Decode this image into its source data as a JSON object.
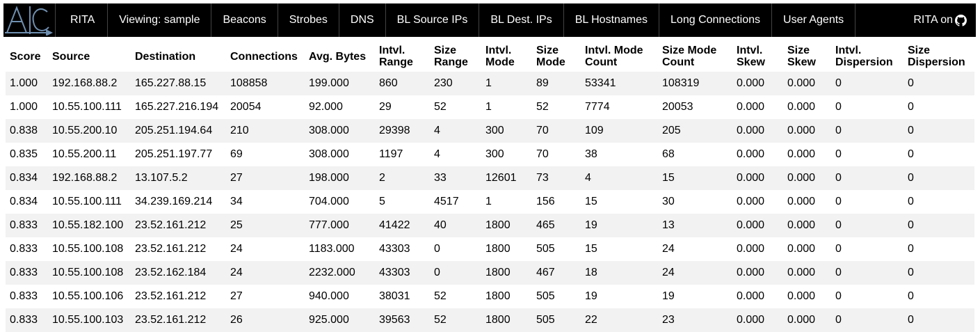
{
  "nav": {
    "logo_name": "rita-logo",
    "items": [
      {
        "label": "RITA"
      },
      {
        "label": "Viewing: sample"
      },
      {
        "label": "Beacons"
      },
      {
        "label": "Strobes"
      },
      {
        "label": "DNS"
      },
      {
        "label": "BL Source IPs"
      },
      {
        "label": "BL Dest. IPs"
      },
      {
        "label": "BL Hostnames"
      },
      {
        "label": "Long Connections"
      },
      {
        "label": "User Agents"
      }
    ],
    "github_label": "RITA on",
    "github_icon": "github-icon"
  },
  "table": {
    "headers": [
      [
        "Score"
      ],
      [
        "Source"
      ],
      [
        "Destination"
      ],
      [
        "Connections"
      ],
      [
        "Avg. Bytes"
      ],
      [
        "Intvl.",
        "Range"
      ],
      [
        "Size",
        "Range"
      ],
      [
        "Intvl.",
        "Mode"
      ],
      [
        "Size",
        "Mode"
      ],
      [
        "Intvl. Mode",
        "Count"
      ],
      [
        "Size Mode",
        "Count"
      ],
      [
        "Intvl.",
        "Skew"
      ],
      [
        "Size",
        "Skew"
      ],
      [
        "Intvl.",
        "Dispersion"
      ],
      [
        "Size",
        "Dispersion"
      ]
    ],
    "rows": [
      [
        "1.000",
        "192.168.88.2",
        "165.227.88.15",
        "108858",
        "199.000",
        "860",
        "230",
        "1",
        "89",
        "53341",
        "108319",
        "0.000",
        "0.000",
        "0",
        "0"
      ],
      [
        "1.000",
        "10.55.100.111",
        "165.227.216.194",
        "20054",
        "92.000",
        "29",
        "52",
        "1",
        "52",
        "7774",
        "20053",
        "0.000",
        "0.000",
        "0",
        "0"
      ],
      [
        "0.838",
        "10.55.200.10",
        "205.251.194.64",
        "210",
        "308.000",
        "29398",
        "4",
        "300",
        "70",
        "109",
        "205",
        "0.000",
        "0.000",
        "0",
        "0"
      ],
      [
        "0.835",
        "10.55.200.11",
        "205.251.197.77",
        "69",
        "308.000",
        "1197",
        "4",
        "300",
        "70",
        "38",
        "68",
        "0.000",
        "0.000",
        "0",
        "0"
      ],
      [
        "0.834",
        "192.168.88.2",
        "13.107.5.2",
        "27",
        "198.000",
        "2",
        "33",
        "12601",
        "73",
        "4",
        "15",
        "0.000",
        "0.000",
        "0",
        "0"
      ],
      [
        "0.834",
        "10.55.100.111",
        "34.239.169.214",
        "34",
        "704.000",
        "5",
        "4517",
        "1",
        "156",
        "15",
        "30",
        "0.000",
        "0.000",
        "0",
        "0"
      ],
      [
        "0.833",
        "10.55.182.100",
        "23.52.161.212",
        "25",
        "777.000",
        "41422",
        "40",
        "1800",
        "465",
        "19",
        "13",
        "0.000",
        "0.000",
        "0",
        "0"
      ],
      [
        "0.833",
        "10.55.100.108",
        "23.52.161.212",
        "24",
        "1183.000",
        "43303",
        "0",
        "1800",
        "505",
        "15",
        "24",
        "0.000",
        "0.000",
        "0",
        "0"
      ],
      [
        "0.833",
        "10.55.100.108",
        "23.52.162.184",
        "24",
        "2232.000",
        "43303",
        "0",
        "1800",
        "467",
        "18",
        "24",
        "0.000",
        "0.000",
        "0",
        "0"
      ],
      [
        "0.833",
        "10.55.100.106",
        "23.52.161.212",
        "27",
        "940.000",
        "38031",
        "52",
        "1800",
        "505",
        "19",
        "19",
        "0.000",
        "0.000",
        "0",
        "0"
      ],
      [
        "0.833",
        "10.55.100.103",
        "23.52.161.212",
        "26",
        "925.000",
        "39563",
        "52",
        "1800",
        "505",
        "22",
        "23",
        "0.000",
        "0.000",
        "0",
        "0"
      ]
    ]
  }
}
